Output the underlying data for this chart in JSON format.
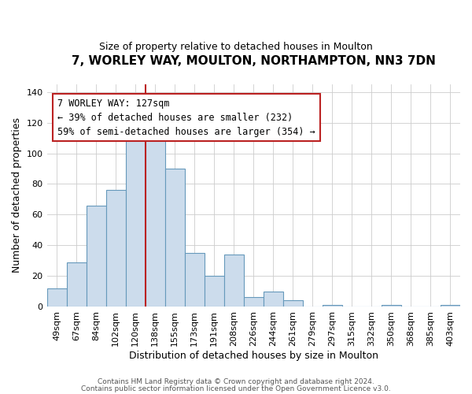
{
  "title": "7, WORLEY WAY, MOULTON, NORTHAMPTON, NN3 7DN",
  "subtitle": "Size of property relative to detached houses in Moulton",
  "xlabel": "Distribution of detached houses by size in Moulton",
  "ylabel": "Number of detached properties",
  "footer_line1": "Contains HM Land Registry data © Crown copyright and database right 2024.",
  "footer_line2": "Contains public sector information licensed under the Open Government Licence v3.0.",
  "bin_labels": [
    "49sqm",
    "67sqm",
    "84sqm",
    "102sqm",
    "120sqm",
    "138sqm",
    "155sqm",
    "173sqm",
    "191sqm",
    "208sqm",
    "226sqm",
    "244sqm",
    "261sqm",
    "279sqm",
    "297sqm",
    "315sqm",
    "332sqm",
    "350sqm",
    "368sqm",
    "385sqm",
    "403sqm"
  ],
  "bar_heights": [
    12,
    29,
    66,
    76,
    110,
    110,
    90,
    35,
    20,
    34,
    6,
    10,
    4,
    0,
    1,
    0,
    0,
    1,
    0,
    0,
    1
  ],
  "bar_color": "#ccdcec",
  "bar_edge_color": "#6699bb",
  "bar_edge_width": 0.8,
  "grid_color": "#cccccc",
  "background_color": "#ffffff",
  "ylim": [
    0,
    145
  ],
  "yticks": [
    0,
    20,
    40,
    60,
    80,
    100,
    120,
    140
  ],
  "annotation_line1": "7 WORLEY WAY: 127sqm",
  "annotation_line2": "← 39% of detached houses are smaller (232)",
  "annotation_line3": "59% of semi-detached houses are larger (354) →",
  "vline_x": 5,
  "vline_color": "#bb2222",
  "annotation_box_edge_color": "#bb2222",
  "annotation_fontsize": 8.5,
  "title_fontsize": 11,
  "subtitle_fontsize": 9,
  "xlabel_fontsize": 9,
  "ylabel_fontsize": 9,
  "tick_fontsize": 8
}
